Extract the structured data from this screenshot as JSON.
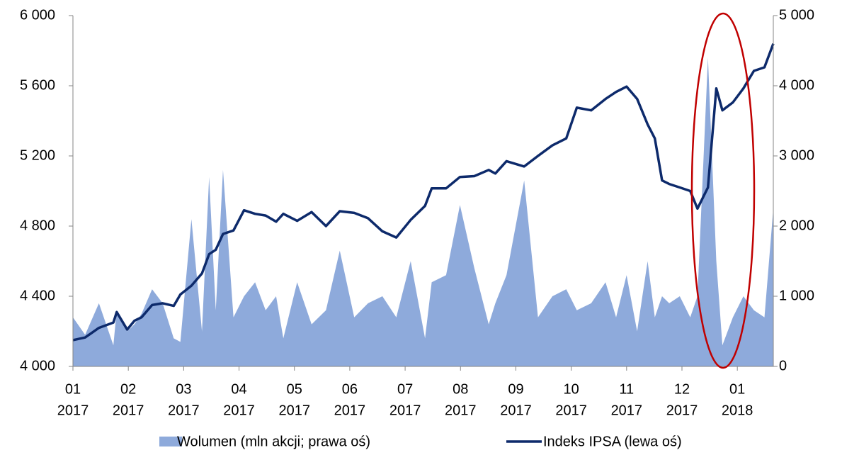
{
  "chart_data": {
    "type": "line",
    "x": [
      0,
      0.22,
      0.47,
      0.73,
      0.79,
      0.98,
      1.11,
      1.24,
      1.43,
      1.62,
      1.82,
      1.94,
      2.14,
      2.33,
      2.46,
      2.58,
      2.71,
      2.9,
      3.09,
      3.29,
      3.48,
      3.67,
      3.8,
      4.05,
      4.31,
      4.57,
      4.82,
      5.08,
      5.33,
      5.59,
      5.84,
      6.1,
      6.36,
      6.48,
      6.74,
      6.99,
      7.25,
      7.51,
      7.63,
      7.83,
      8.15,
      8.4,
      8.66,
      8.91,
      9.1,
      9.36,
      9.62,
      9.81,
      10,
      10.19,
      10.38,
      10.51,
      10.64,
      10.77,
      10.96,
      11.15,
      11.28,
      11.47,
      11.62,
      11.73,
      11.92,
      12.11,
      12.3,
      12.49,
      12.65
    ],
    "series": [
      {
        "name": "Wolumen (mln akcji; prawa oś)",
        "color": "#8eaadb",
        "axis": "y2",
        "kind": "area",
        "values": [
          700,
          450,
          900,
          300,
          800,
          500,
          600,
          750,
          1100,
          900,
          400,
          350,
          2100,
          500,
          2700,
          800,
          2800,
          700,
          1000,
          1200,
          800,
          1000,
          400,
          1200,
          600,
          800,
          1650,
          700,
          900,
          1000,
          700,
          1500,
          400,
          1200,
          1300,
          2300,
          1400,
          600,
          900,
          1300,
          2650,
          700,
          1000,
          1100,
          800,
          900,
          1200,
          700,
          1300,
          500,
          1500,
          700,
          1000,
          900,
          1000,
          700,
          1000,
          4400,
          1500,
          300,
          700,
          1000,
          800,
          700,
          2250
        ]
      },
      {
        "name": "Indeks IPSA (lewa oś)",
        "color": "#0d2a6b",
        "kind": "line",
        "values": [
          4150,
          4165,
          4220,
          4250,
          4310,
          4210,
          4260,
          4280,
          4350,
          4360,
          4345,
          4410,
          4460,
          4530,
          4640,
          4665,
          4755,
          4775,
          4890,
          4870,
          4860,
          4825,
          4870,
          4830,
          4880,
          4800,
          4885,
          4875,
          4845,
          4770,
          4735,
          4835,
          4915,
          5015,
          5015,
          5080,
          5085,
          5120,
          5100,
          5170,
          5140,
          5200,
          5260,
          5300,
          5475,
          5460,
          5525,
          5565,
          5595,
          5525,
          5380,
          5300,
          5060,
          5040,
          5020,
          5000,
          4900,
          5020,
          5585,
          5460,
          5505,
          5585,
          5685,
          5705,
          5840
        ]
      }
    ],
    "xlim": [
      0,
      12.65
    ],
    "xticks": [
      {
        "value": 0,
        "label": [
          "01",
          "2017"
        ]
      },
      {
        "value": 1,
        "label": [
          "02",
          "2017"
        ]
      },
      {
        "value": 2,
        "label": [
          "03",
          "2017"
        ]
      },
      {
        "value": 3,
        "label": [
          "04",
          "2017"
        ]
      },
      {
        "value": 4,
        "label": [
          "05",
          "2017"
        ]
      },
      {
        "value": 5,
        "label": [
          "06",
          "2017"
        ]
      },
      {
        "value": 6,
        "label": [
          "07",
          "2017"
        ]
      },
      {
        "value": 7,
        "label": [
          "08",
          "2017"
        ]
      },
      {
        "value": 8,
        "label": [
          "09",
          "2017"
        ]
      },
      {
        "value": 9,
        "label": [
          "10",
          "2017"
        ]
      },
      {
        "value": 10,
        "label": [
          "11",
          "2017"
        ]
      },
      {
        "value": 11,
        "label": [
          "12",
          "2017"
        ]
      },
      {
        "value": 12,
        "label": [
          "01",
          "2018"
        ]
      }
    ],
    "ylim": [
      4000,
      6000
    ],
    "yticks": [
      {
        "value": 4000,
        "label": "4 000"
      },
      {
        "value": 4400,
        "label": "4 400"
      },
      {
        "value": 4800,
        "label": "4 800"
      },
      {
        "value": 5200,
        "label": "5 200"
      },
      {
        "value": 5600,
        "label": "5 600"
      },
      {
        "value": 6000,
        "label": "6 000"
      }
    ],
    "y2lim": [
      0,
      5000
    ],
    "y2ticks": [
      0,
      {
        "value": 1000,
        "label": "1 000"
      },
      {
        "value": 2000,
        "label": "2 000"
      },
      {
        "value": 3000,
        "label": "3 000"
      },
      {
        "value": 4000,
        "label": "4 000"
      },
      {
        "value": 5000,
        "label": "5 000"
      }
    ]
  }
}
